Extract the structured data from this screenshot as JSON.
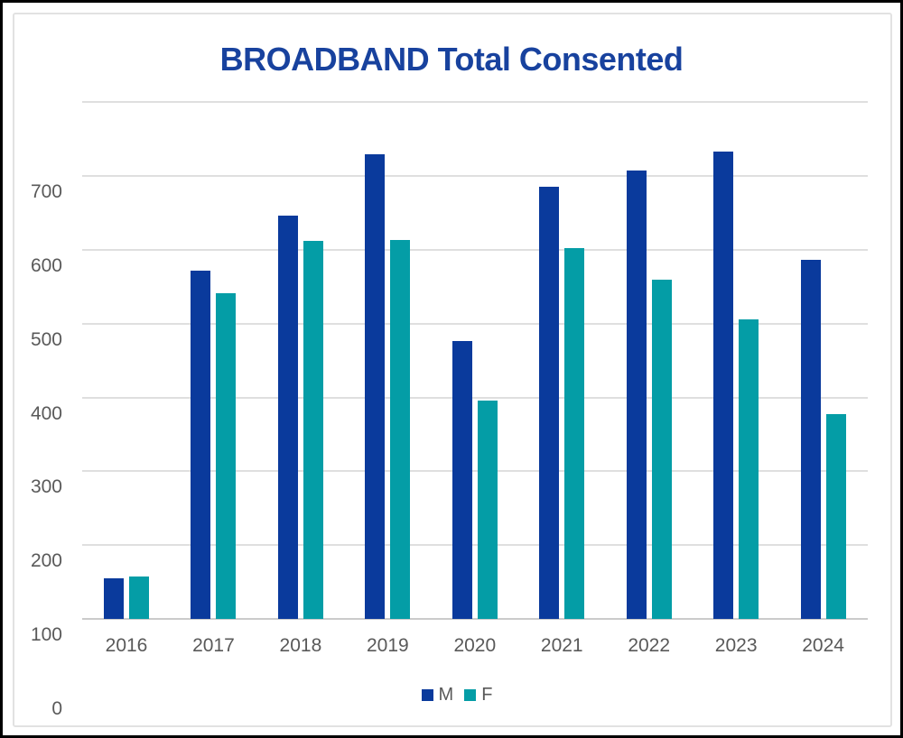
{
  "frame": {
    "outer_border_color": "#000000",
    "inner_border_color": "#E2E2E2",
    "background": "#FFFFFF"
  },
  "chart_data": {
    "type": "bar",
    "title": "BROADBAND Total Consented",
    "title_color": "#18429E",
    "categories": [
      "2016",
      "2017",
      "2018",
      "2019",
      "2020",
      "2021",
      "2022",
      "2023",
      "2024"
    ],
    "series": [
      {
        "name": "M",
        "color": "#0A3A9C",
        "values": [
          155,
          572,
          647,
          730,
          476,
          685,
          708,
          733,
          586
        ]
      },
      {
        "name": "F",
        "color": "#049DA6",
        "values": [
          158,
          541,
          612,
          613,
          396,
          602,
          560,
          506,
          377
        ]
      }
    ],
    "y_axis": {
      "tick_labels": [
        "700",
        "600",
        "500",
        "400",
        "300",
        "200",
        "100",
        "0"
      ],
      "tick_values": [
        700,
        600,
        500,
        400,
        300,
        200,
        100,
        0
      ],
      "gridline_values": [
        800,
        700,
        600,
        500,
        400,
        300,
        200
      ],
      "bars_start_value": 100,
      "axis_top_value": 800,
      "ylim": [
        0,
        800
      ],
      "label_color": "#595959",
      "gridline_color": "#DFDFDF",
      "axis_line_color": "#CBCBCB"
    },
    "x_axis": {
      "label_color": "#595959"
    },
    "legend": {
      "position": "bottom",
      "entries": [
        "M",
        "F"
      ],
      "text_color": "#595959"
    },
    "grid": true
  }
}
